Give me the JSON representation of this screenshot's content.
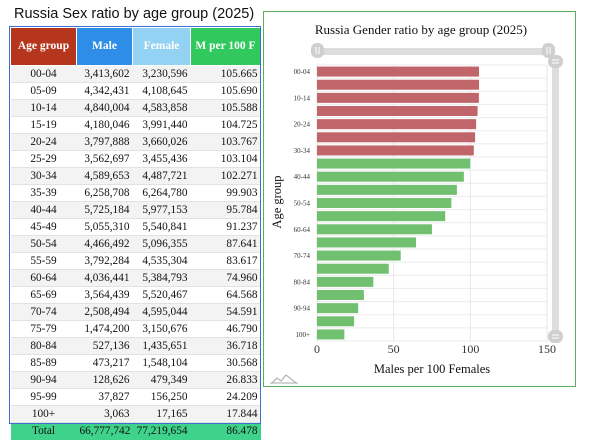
{
  "table": {
    "title": "Russia Sex ratio by age group (2025)",
    "headers": {
      "age": "Age group",
      "male": "Male",
      "female": "Female",
      "ratio": "M per 100 F"
    },
    "colors": {
      "age": "#b5361c",
      "male": "#2e8de6",
      "female": "#93d2f2",
      "ratio": "#31c95e",
      "total_row": "#3fd28a"
    },
    "rows": [
      {
        "age": "00-04",
        "male": "3,413,602",
        "female": "3,230,596",
        "ratio": "105.665"
      },
      {
        "age": "05-09",
        "male": "4,342,431",
        "female": "4,108,645",
        "ratio": "105.690"
      },
      {
        "age": "10-14",
        "male": "4,840,004",
        "female": "4,583,858",
        "ratio": "105.588"
      },
      {
        "age": "15-19",
        "male": "4,180,046",
        "female": "3,991,440",
        "ratio": "104.725"
      },
      {
        "age": "20-24",
        "male": "3,797,888",
        "female": "3,660,026",
        "ratio": "103.767"
      },
      {
        "age": "25-29",
        "male": "3,562,697",
        "female": "3,455,436",
        "ratio": "103.104"
      },
      {
        "age": "30-34",
        "male": "4,589,653",
        "female": "4,487,721",
        "ratio": "102.271"
      },
      {
        "age": "35-39",
        "male": "6,258,708",
        "female": "6,264,780",
        "ratio": "99.903"
      },
      {
        "age": "40-44",
        "male": "5,725,184",
        "female": "5,977,153",
        "ratio": "95.784"
      },
      {
        "age": "45-49",
        "male": "5,055,310",
        "female": "5,540,841",
        "ratio": "91.237"
      },
      {
        "age": "50-54",
        "male": "4,466,492",
        "female": "5,096,355",
        "ratio": "87.641"
      },
      {
        "age": "55-59",
        "male": "3,792,284",
        "female": "4,535,304",
        "ratio": "83.617"
      },
      {
        "age": "60-64",
        "male": "4,036,441",
        "female": "5,384,793",
        "ratio": "74.960"
      },
      {
        "age": "65-69",
        "male": "3,564,439",
        "female": "5,520,467",
        "ratio": "64.568"
      },
      {
        "age": "70-74",
        "male": "2,508,494",
        "female": "4,595,044",
        "ratio": "54.591"
      },
      {
        "age": "75-79",
        "male": "1,474,200",
        "female": "3,150,676",
        "ratio": "46.790"
      },
      {
        "age": "80-84",
        "male": "527,136",
        "female": "1,435,651",
        "ratio": "36.718"
      },
      {
        "age": "85-89",
        "male": "473,217",
        "female": "1,548,104",
        "ratio": "30.568"
      },
      {
        "age": "90-94",
        "male": "128,626",
        "female": "479,349",
        "ratio": "26.833"
      },
      {
        "age": "95-99",
        "male": "37,827",
        "female": "156,250",
        "ratio": "24.209"
      },
      {
        "age": "100+",
        "male": "3,063",
        "female": "17,165",
        "ratio": "17.844"
      }
    ],
    "total": {
      "age": "Total",
      "male": "66,777,742",
      "female": "77,219,654",
      "ratio": "86.478"
    }
  },
  "chart_data": {
    "type": "bar",
    "orientation": "horizontal",
    "title": "Russia Gender ratio by age group (2025)",
    "xlabel": "Males per 100 Females",
    "ylabel": "Age group",
    "xlim": [
      0,
      150
    ],
    "x_ticks": [
      0,
      50,
      100,
      150
    ],
    "grid": true,
    "categories": [
      "00-04",
      "05-09",
      "10-14",
      "15-19",
      "20-24",
      "25-29",
      "30-34",
      "35-39",
      "40-44",
      "45-49",
      "50-54",
      "55-59",
      "60-64",
      "65-69",
      "70-74",
      "75-79",
      "80-84",
      "85-89",
      "90-94",
      "95-99",
      "100+"
    ],
    "category_labels": [
      "00-04",
      "",
      "10-14",
      "",
      "20-24",
      "",
      "30-34",
      "",
      "40-44",
      "",
      "50-54",
      "",
      "60-64",
      "",
      "70-74",
      "",
      "80-84",
      "",
      "90-94",
      "",
      "100+"
    ],
    "values": [
      105.665,
      105.69,
      105.588,
      104.725,
      103.767,
      103.104,
      102.271,
      99.903,
      95.784,
      91.237,
      87.641,
      83.617,
      74.96,
      64.568,
      54.591,
      46.79,
      36.718,
      30.568,
      26.833,
      24.209,
      17.844
    ],
    "colors": {
      "above_100": "#c0666a",
      "below_100": "#70c070"
    }
  }
}
